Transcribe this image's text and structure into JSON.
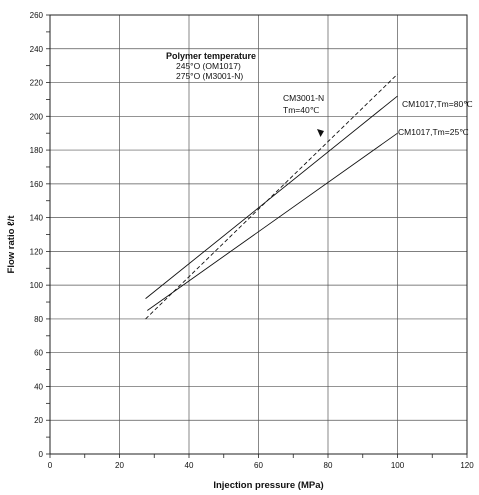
{
  "chart_data": {
    "type": "line",
    "title": "",
    "xlabel": "Injection pressure (MPa)",
    "ylabel": "Flow ratio ℓ/t",
    "xlim": [
      0,
      120
    ],
    "ylim": [
      0,
      260
    ],
    "xticks": [
      0,
      20,
      40,
      60,
      80,
      100,
      120
    ],
    "yticks": [
      0,
      20,
      40,
      60,
      80,
      100,
      120,
      140,
      160,
      180,
      200,
      220,
      240,
      260
    ],
    "grid": true,
    "series": [
      {
        "name": "CM1017,Tm=80℃",
        "style": "solid",
        "x": [
          27.5,
          100
        ],
        "y": [
          92,
          212
        ]
      },
      {
        "name": "CM1017,Tm=25℃",
        "style": "solid",
        "x": [
          28,
          100
        ],
        "y": [
          85,
          190
        ]
      },
      {
        "name": "CM3001-N Tm=40℃",
        "style": "dashed",
        "x": [
          27.5,
          100
        ],
        "y": [
          80,
          225
        ]
      }
    ],
    "annotations": {
      "header": [
        "Polymer temperature",
        "245°O (OM1017)",
        "275°O (M3001-N)"
      ],
      "cm3001_label": [
        "CM3001-N",
        "Tm=40℃"
      ],
      "tm80_label": "CM1017,Tm=80℃",
      "tm25_label": "CM1017,Tm=25℃"
    }
  }
}
